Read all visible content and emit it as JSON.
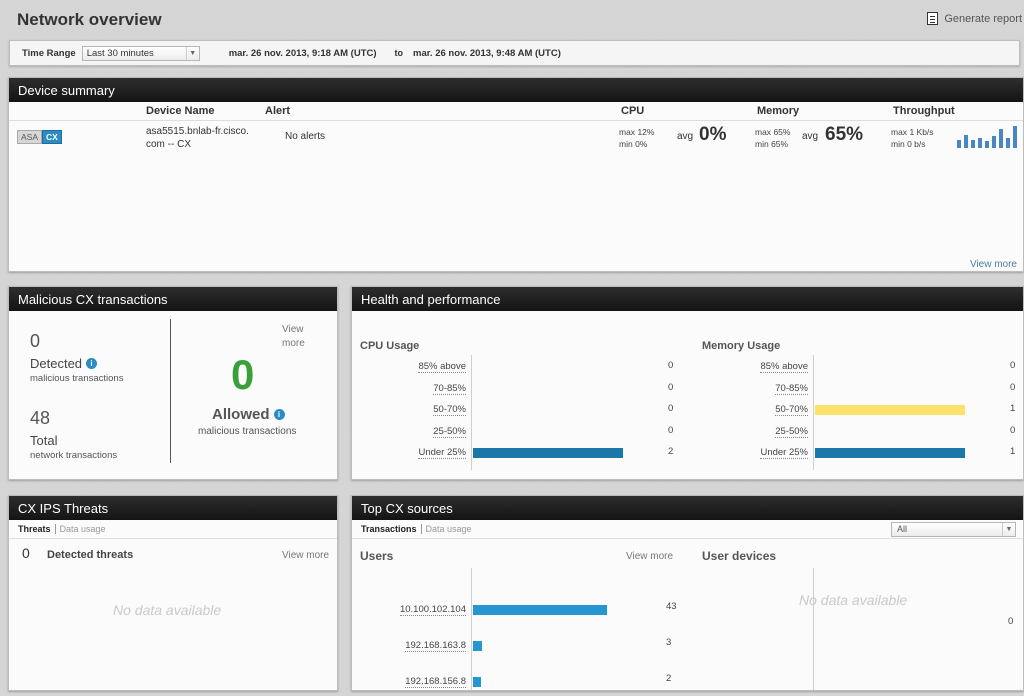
{
  "header": {
    "title": "Network overview",
    "generate_report": "Generate report"
  },
  "time_range": {
    "label": "Time Range",
    "selected": "Last 30 minutes",
    "from": "mar. 26 nov. 2013, 9:18 AM (UTC)",
    "to_word": "to",
    "to": "mar. 26 nov. 2013, 9:48 AM (UTC)"
  },
  "device_summary": {
    "title": "Device summary",
    "columns": {
      "device_name": "Device Name",
      "alert": "Alert",
      "cpu": "CPU",
      "memory": "Memory",
      "throughput": "Throughput"
    },
    "row": {
      "badge_asa": "ASA",
      "badge_cx": "CX",
      "device_line1": "asa5515.bnlab-fr.cisco.",
      "device_line2": "com -- CX",
      "alert": "No alerts",
      "cpu_max_label": "max",
      "cpu_max": "12%",
      "cpu_min_label": "min",
      "cpu_min": "0%",
      "cpu_avg_label": "avg",
      "cpu_avg": "0%",
      "mem_max_label": "max",
      "mem_max": "65%",
      "mem_min_label": "min",
      "mem_min": "65%",
      "mem_avg_label": "avg",
      "mem_avg": "65%",
      "thr_max_label": "max",
      "thr_max": "1 Kb/s",
      "thr_min_label": "min",
      "thr_min": "0 b/s"
    },
    "throughput_spark": [
      0.35,
      0.6,
      0.35,
      0.45,
      0.3,
      0.55,
      0.85,
      0.45,
      1.0
    ],
    "view_more": "View more"
  },
  "malicious": {
    "title": "Malicious CX transactions",
    "detected_count": "0",
    "detected_label": "Detected",
    "detected_sub": "malicious transactions",
    "total_count": "48",
    "total_label": "Total",
    "total_sub": "network transactions",
    "view_more_1": "View",
    "view_more_2": "more",
    "allowed_count": "0",
    "allowed_label": "Allowed",
    "allowed_sub": "malicious transactions"
  },
  "health": {
    "title": "Health and performance",
    "cpu_title": "CPU Usage",
    "mem_title": "Memory Usage",
    "cpu_rows": [
      {
        "label": "85% above",
        "count": "0",
        "value": 0
      },
      {
        "label": "70-85%",
        "count": "0",
        "value": 0
      },
      {
        "label": "50-70%",
        "count": "0",
        "value": 0
      },
      {
        "label": "25-50%",
        "count": "0",
        "value": 0
      },
      {
        "label": "Under 25%",
        "count": "2",
        "value": 2
      }
    ],
    "mem_rows": [
      {
        "label": "85% above",
        "count": "0",
        "value": 0
      },
      {
        "label": "70-85%",
        "count": "0",
        "value": 0
      },
      {
        "label": "50-70%",
        "count": "1",
        "value": 1
      },
      {
        "label": "25-50%",
        "count": "0",
        "value": 0
      },
      {
        "label": "Under 25%",
        "count": "1",
        "value": 1
      }
    ],
    "colors": {
      "blue": "#1b77a8",
      "yellow": "#fbe26a"
    }
  },
  "ips": {
    "title": "CX IPS Threats",
    "tab_active": "Threats",
    "tab_inactive": "Data usage",
    "detected_count": "0",
    "detected_label": "Detected threats",
    "view_more": "View more",
    "no_data": "No data available"
  },
  "top_sources": {
    "title": "Top CX sources",
    "tab_active": "Transactions",
    "tab_inactive": "Data usage",
    "select_value": "All",
    "users_title": "Users",
    "view_more": "View more",
    "users": [
      {
        "ip": "10.100.102.104",
        "count": "43",
        "value": 43
      },
      {
        "ip": "192.168.163.8",
        "count": "3",
        "value": 3
      },
      {
        "ip": "192.168.156.8",
        "count": "2",
        "value": 2
      }
    ],
    "devices_title": "User devices",
    "devices_no_data": "No data available",
    "devices_count": "0",
    "bar_color": "#2596d1"
  }
}
